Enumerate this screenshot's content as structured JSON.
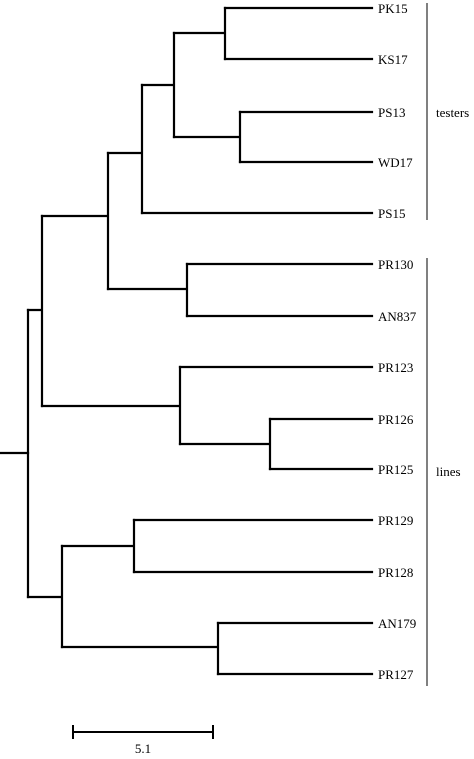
{
  "tree": {
    "leaves": [
      "PK15",
      "KS17",
      "PS13",
      "WD17",
      "PS15",
      "PR130",
      "AN837",
      "PR123",
      "PR126",
      "PR125",
      "PR129",
      "PR128",
      "AN179",
      "PR127"
    ],
    "groups": [
      {
        "label": "testers",
        "first_leaf": "PK15",
        "last_leaf": "PS15"
      },
      {
        "label": "lines",
        "first_leaf": "PR130",
        "last_leaf": "PR127"
      }
    ],
    "scale_bar": {
      "label": "5.1"
    }
  }
}
